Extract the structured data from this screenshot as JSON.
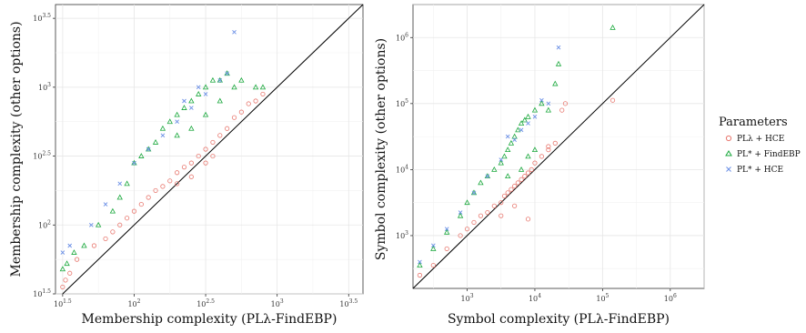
{
  "legend": {
    "title": "Parameters",
    "entries": [
      {
        "label": "PLλ + HCE",
        "color": "#e8786f",
        "shape": "circle"
      },
      {
        "label": "PL* + FindEBP",
        "color": "#1aa83c",
        "shape": "triangle"
      },
      {
        "label": "PL* + HCE",
        "color": "#6a8fe6",
        "shape": "cross"
      }
    ]
  },
  "chart_data": [
    {
      "type": "scatter",
      "xlabel": "Membership complexity (PLλ-FindEBP)",
      "ylabel": "Membership complexity (other options)",
      "scale": "log10",
      "xlim": [
        1.45,
        3.6
      ],
      "ylim": [
        1.5,
        3.6
      ],
      "x_ticks": [
        "10^1.5",
        "10^2",
        "10^2.5",
        "10^3",
        "10^3.5"
      ],
      "y_ticks": [
        "10^1.5",
        "10^2",
        "10^2.5",
        "10^3",
        "10^3.5"
      ],
      "diagonal": true,
      "series": [
        {
          "name": "PLλ + HCE",
          "points": [
            [
              1.5,
              1.55
            ],
            [
              1.52,
              1.6
            ],
            [
              1.55,
              1.65
            ],
            [
              1.6,
              1.75
            ],
            [
              1.72,
              1.85
            ],
            [
              1.8,
              1.9
            ],
            [
              1.85,
              1.95
            ],
            [
              1.9,
              2.0
            ],
            [
              1.95,
              2.05
            ],
            [
              2.0,
              2.1
            ],
            [
              2.05,
              2.15
            ],
            [
              2.1,
              2.2
            ],
            [
              2.15,
              2.25
            ],
            [
              2.2,
              2.28
            ],
            [
              2.25,
              2.32
            ],
            [
              2.3,
              2.38
            ],
            [
              2.35,
              2.42
            ],
            [
              2.4,
              2.45
            ],
            [
              2.45,
              2.5
            ],
            [
              2.5,
              2.55
            ],
            [
              2.55,
              2.6
            ],
            [
              2.6,
              2.65
            ],
            [
              2.65,
              2.7
            ],
            [
              2.7,
              2.78
            ],
            [
              2.75,
              2.82
            ],
            [
              2.8,
              2.88
            ],
            [
              2.85,
              2.9
            ],
            [
              2.9,
              2.95
            ],
            [
              2.3,
              2.3
            ],
            [
              2.4,
              2.35
            ],
            [
              2.5,
              2.45
            ],
            [
              2.55,
              2.5
            ]
          ]
        },
        {
          "name": "PL* + FindEBP",
          "points": [
            [
              1.5,
              1.68
            ],
            [
              1.53,
              1.72
            ],
            [
              1.58,
              1.8
            ],
            [
              1.65,
              1.85
            ],
            [
              1.75,
              2.0
            ],
            [
              1.85,
              2.1
            ],
            [
              1.9,
              2.2
            ],
            [
              1.95,
              2.3
            ],
            [
              2.0,
              2.45
            ],
            [
              2.05,
              2.5
            ],
            [
              2.1,
              2.55
            ],
            [
              2.15,
              2.6
            ],
            [
              2.2,
              2.7
            ],
            [
              2.25,
              2.75
            ],
            [
              2.3,
              2.8
            ],
            [
              2.35,
              2.85
            ],
            [
              2.4,
              2.9
            ],
            [
              2.45,
              2.95
            ],
            [
              2.5,
              3.0
            ],
            [
              2.55,
              3.05
            ],
            [
              2.6,
              3.05
            ],
            [
              2.65,
              3.1
            ],
            [
              2.7,
              3.0
            ],
            [
              2.75,
              3.05
            ],
            [
              2.85,
              3.0
            ],
            [
              2.9,
              3.0
            ],
            [
              2.3,
              2.65
            ],
            [
              2.4,
              2.7
            ],
            [
              2.5,
              2.8
            ],
            [
              2.6,
              2.9
            ]
          ]
        },
        {
          "name": "PL* + HCE",
          "points": [
            [
              1.5,
              1.8
            ],
            [
              1.55,
              1.85
            ],
            [
              1.7,
              2.0
            ],
            [
              1.8,
              2.15
            ],
            [
              1.9,
              2.3
            ],
            [
              2.0,
              2.45
            ],
            [
              2.1,
              2.55
            ],
            [
              2.2,
              2.65
            ],
            [
              2.3,
              2.75
            ],
            [
              2.4,
              2.85
            ],
            [
              2.5,
              2.95
            ],
            [
              2.6,
              3.05
            ],
            [
              2.7,
              3.4
            ],
            [
              2.65,
              3.1
            ],
            [
              2.45,
              3.0
            ],
            [
              2.35,
              2.9
            ]
          ]
        }
      ]
    },
    {
      "type": "scatter",
      "xlabel": "Symbol complexity (PLλ-FindEBP)",
      "ylabel": "Symbol complexity (other options)",
      "scale": "log10",
      "xlim": [
        2.2,
        6.5
      ],
      "ylim": [
        2.2,
        6.5
      ],
      "x_ticks": [
        "10^3",
        "10^4",
        "10^5",
        "10^6"
      ],
      "y_ticks": [
        "10^3",
        "10^4",
        "10^5",
        "10^6"
      ],
      "diagonal": true,
      "series": [
        {
          "name": "PLλ + HCE",
          "points": [
            [
              2.3,
              2.4
            ],
            [
              2.5,
              2.55
            ],
            [
              2.7,
              2.8
            ],
            [
              2.9,
              3.0
            ],
            [
              3.0,
              3.1
            ],
            [
              3.1,
              3.2
            ],
            [
              3.2,
              3.3
            ],
            [
              3.3,
              3.35
            ],
            [
              3.4,
              3.45
            ],
            [
              3.5,
              3.5
            ],
            [
              3.55,
              3.6
            ],
            [
              3.6,
              3.65
            ],
            [
              3.65,
              3.7
            ],
            [
              3.7,
              3.75
            ],
            [
              3.75,
              3.8
            ],
            [
              3.8,
              3.85
            ],
            [
              3.85,
              3.9
            ],
            [
              3.9,
              3.95
            ],
            [
              3.95,
              4.0
            ],
            [
              4.0,
              4.1
            ],
            [
              4.1,
              4.2
            ],
            [
              4.2,
              4.3
            ],
            [
              4.3,
              4.4
            ],
            [
              4.4,
              4.9
            ],
            [
              4.45,
              5.0
            ],
            [
              5.15,
              5.05
            ],
            [
              3.9,
              3.25
            ],
            [
              3.5,
              3.3
            ],
            [
              3.7,
              3.45
            ],
            [
              4.2,
              4.35
            ]
          ]
        },
        {
          "name": "PL* + FindEBP",
          "points": [
            [
              2.3,
              2.55
            ],
            [
              2.5,
              2.8
            ],
            [
              2.7,
              3.05
            ],
            [
              2.9,
              3.3
            ],
            [
              3.0,
              3.5
            ],
            [
              3.1,
              3.65
            ],
            [
              3.2,
              3.8
            ],
            [
              3.3,
              3.9
            ],
            [
              3.4,
              4.0
            ],
            [
              3.5,
              4.1
            ],
            [
              3.55,
              4.2
            ],
            [
              3.6,
              4.3
            ],
            [
              3.65,
              4.4
            ],
            [
              3.7,
              4.5
            ],
            [
              3.75,
              4.6
            ],
            [
              3.8,
              4.7
            ],
            [
              3.85,
              4.75
            ],
            [
              3.9,
              4.8
            ],
            [
              4.0,
              4.9
            ],
            [
              4.1,
              5.0
            ],
            [
              4.2,
              4.9
            ],
            [
              4.3,
              5.3
            ],
            [
              4.35,
              5.6
            ],
            [
              5.15,
              6.15
            ],
            [
              3.6,
              3.9
            ],
            [
              3.8,
              4.0
            ],
            [
              3.9,
              4.2
            ],
            [
              4.0,
              4.3
            ]
          ]
        },
        {
          "name": "PL* + HCE",
          "points": [
            [
              2.3,
              2.6
            ],
            [
              2.5,
              2.85
            ],
            [
              2.7,
              3.1
            ],
            [
              2.9,
              3.35
            ],
            [
              3.1,
              3.65
            ],
            [
              3.3,
              3.9
            ],
            [
              3.5,
              4.15
            ],
            [
              3.7,
              4.45
            ],
            [
              3.9,
              4.7
            ],
            [
              4.0,
              4.8
            ],
            [
              4.2,
              5.0
            ],
            [
              4.35,
              5.85
            ],
            [
              3.6,
              4.5
            ],
            [
              3.8,
              4.6
            ],
            [
              4.1,
              5.05
            ]
          ]
        }
      ]
    }
  ]
}
